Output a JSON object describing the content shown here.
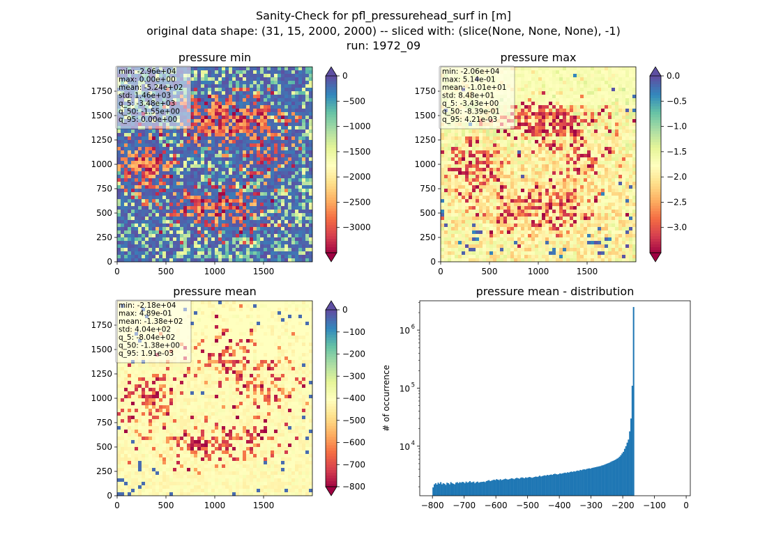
{
  "figure": {
    "title_line1": "Sanity-Check for pfl_pressurehead_surf in [m]",
    "title_line2": "original data shape: (31, 15, 2000, 2000) -- sliced with: (slice(None, None, None), -1)",
    "title_line3": "run: 1972_09"
  },
  "chart_data": [
    {
      "type": "heatmap",
      "title": "pressure min",
      "colormap": "Spectral",
      "colormap_extend": "both",
      "xlim": [
        0,
        2000
      ],
      "ylim": [
        0,
        2000
      ],
      "xticks": [
        0,
        500,
        1000,
        1500
      ],
      "yticks": [
        0,
        250,
        500,
        750,
        1000,
        1250,
        1500,
        1750
      ],
      "colorbar_range": [
        -3500,
        0
      ],
      "colorbar_ticks": [
        0,
        -500,
        -1000,
        -1500,
        -2000,
        -2500,
        -3000
      ],
      "colorbar_tick_labels": [
        "0",
        "−500",
        "−1000",
        "−1500",
        "−2000",
        "−2500",
        "−3000"
      ],
      "stats": [
        "min: -2.96e+04",
        "max: 0.00e+00",
        "mean: -5.24e+02",
        "std: 1.46e+03",
        "q_5: -3.48e+03",
        "q_50: -1.55e+00",
        "q_95: 0.00e+00"
      ]
    },
    {
      "type": "heatmap",
      "title": "pressure max",
      "colormap": "Spectral",
      "colormap_extend": "both",
      "xlim": [
        0,
        2000
      ],
      "ylim": [
        0,
        2000
      ],
      "xticks": [
        0,
        500,
        1000,
        1500
      ],
      "yticks": [
        0,
        250,
        500,
        750,
        1000,
        1250,
        1500,
        1750
      ],
      "colorbar_range": [
        -3.5,
        0
      ],
      "colorbar_ticks": [
        0,
        -0.5,
        -1,
        -1.5,
        -2,
        -2.5,
        -3
      ],
      "colorbar_tick_labels": [
        "0.0",
        "−0.5",
        "−1.0",
        "−1.5",
        "−2.0",
        "−2.5",
        "−3.0"
      ],
      "stats": [
        "min: -2.06e+04",
        "max: 5.14e-01",
        "mean: -1.01e+01",
        "std: 8.48e+01",
        "q_5: -3.43e+00",
        "q_50: -8.39e-01",
        "q_95: 4.21e-03"
      ]
    },
    {
      "type": "heatmap",
      "title": "pressure mean",
      "colormap": "Spectral",
      "colormap_extend": "both",
      "xlim": [
        0,
        2000
      ],
      "ylim": [
        0,
        2000
      ],
      "xticks": [
        0,
        500,
        1000,
        1500
      ],
      "yticks": [
        0,
        250,
        500,
        750,
        1000,
        1250,
        1500,
        1750
      ],
      "colorbar_range": [
        -800,
        0
      ],
      "colorbar_ticks": [
        0,
        -100,
        -200,
        -300,
        -400,
        -500,
        -600,
        -700,
        -800
      ],
      "colorbar_tick_labels": [
        "0",
        "−100",
        "−200",
        "−300",
        "−400",
        "−500",
        "−600",
        "−700",
        "−800"
      ],
      "stats": [
        "min: -2.18e+04",
        "max: 4.89e-01",
        "mean: -1.38e+02",
        "std: 4.04e+02",
        "q_5: -8.04e+02",
        "q_50: -1.38e+00",
        "q_95: 1.91e-03"
      ]
    },
    {
      "type": "bar",
      "subtype": "histogram",
      "title": "pressure mean - distribution",
      "xlabel": "",
      "ylabel": "# of occurrence",
      "yscale": "log",
      "xlim": [
        -840,
        13
      ],
      "ylim": [
        1400,
        3200000
      ],
      "xticks": [
        -800,
        -700,
        -600,
        -500,
        -400,
        -300,
        -200,
        -100,
        0
      ],
      "xtick_labels": [
        "−800",
        "−700",
        "−600",
        "−500",
        "−400",
        "−300",
        "−200",
        "−100",
        "0"
      ],
      "yticks": [
        10000,
        100000,
        1000000
      ],
      "ytick_labels": [
        "10",
        "10",
        "10"
      ],
      "ytick_exponents": [
        "4",
        "5",
        "6"
      ],
      "color": "#1f77b4",
      "bin_start": -800,
      "bin_width": 4,
      "values": [
        1950,
        2200,
        2300,
        2180,
        2350,
        2250,
        2400,
        2200,
        2300,
        2250,
        2150,
        2350,
        2300,
        2200,
        2400,
        2300,
        2250,
        2200,
        2350,
        2400,
        2300,
        2400,
        2350,
        2420,
        2400,
        2300,
        2450,
        2350,
        2400,
        2500,
        2380,
        2400,
        2450,
        2300,
        2400,
        2450,
        2350,
        2400,
        2420,
        2430,
        2450,
        2400,
        2500,
        2550,
        2600,
        2500,
        2550,
        2600,
        2650,
        2600,
        2700,
        2650,
        2600,
        2700,
        2600,
        2650,
        2700,
        2750,
        2700,
        2650,
        2700,
        2750,
        2800,
        2750,
        2700,
        2800,
        2850,
        2800,
        2750,
        2850,
        2900,
        2850,
        2800,
        2900,
        2850,
        2900,
        2950,
        2900,
        2850,
        2900,
        2950,
        3000,
        2950,
        3000,
        3100,
        3000,
        3050,
        3100,
        3150,
        3100,
        3200,
        3150,
        3200,
        3250,
        3200,
        3300,
        3350,
        3300,
        3250,
        3300,
        3400,
        3350,
        3400,
        3450,
        3500,
        3450,
        3550,
        3500,
        3600,
        3650,
        3600,
        3700,
        3650,
        3750,
        3800,
        3750,
        3900,
        3850,
        3950,
        4000,
        3950,
        4050,
        4100,
        4150,
        4100,
        4200,
        4250,
        4300,
        4350,
        4400,
        4450,
        4500,
        4550,
        4650,
        4700,
        4800,
        4900,
        5000,
        5100,
        5200,
        5350,
        5500,
        5600,
        5750,
        5900,
        6100,
        6300,
        6600,
        7000,
        7500,
        8000,
        9000,
        10000,
        11500,
        13000,
        18000,
        30000,
        110000,
        2500000
      ]
    }
  ]
}
